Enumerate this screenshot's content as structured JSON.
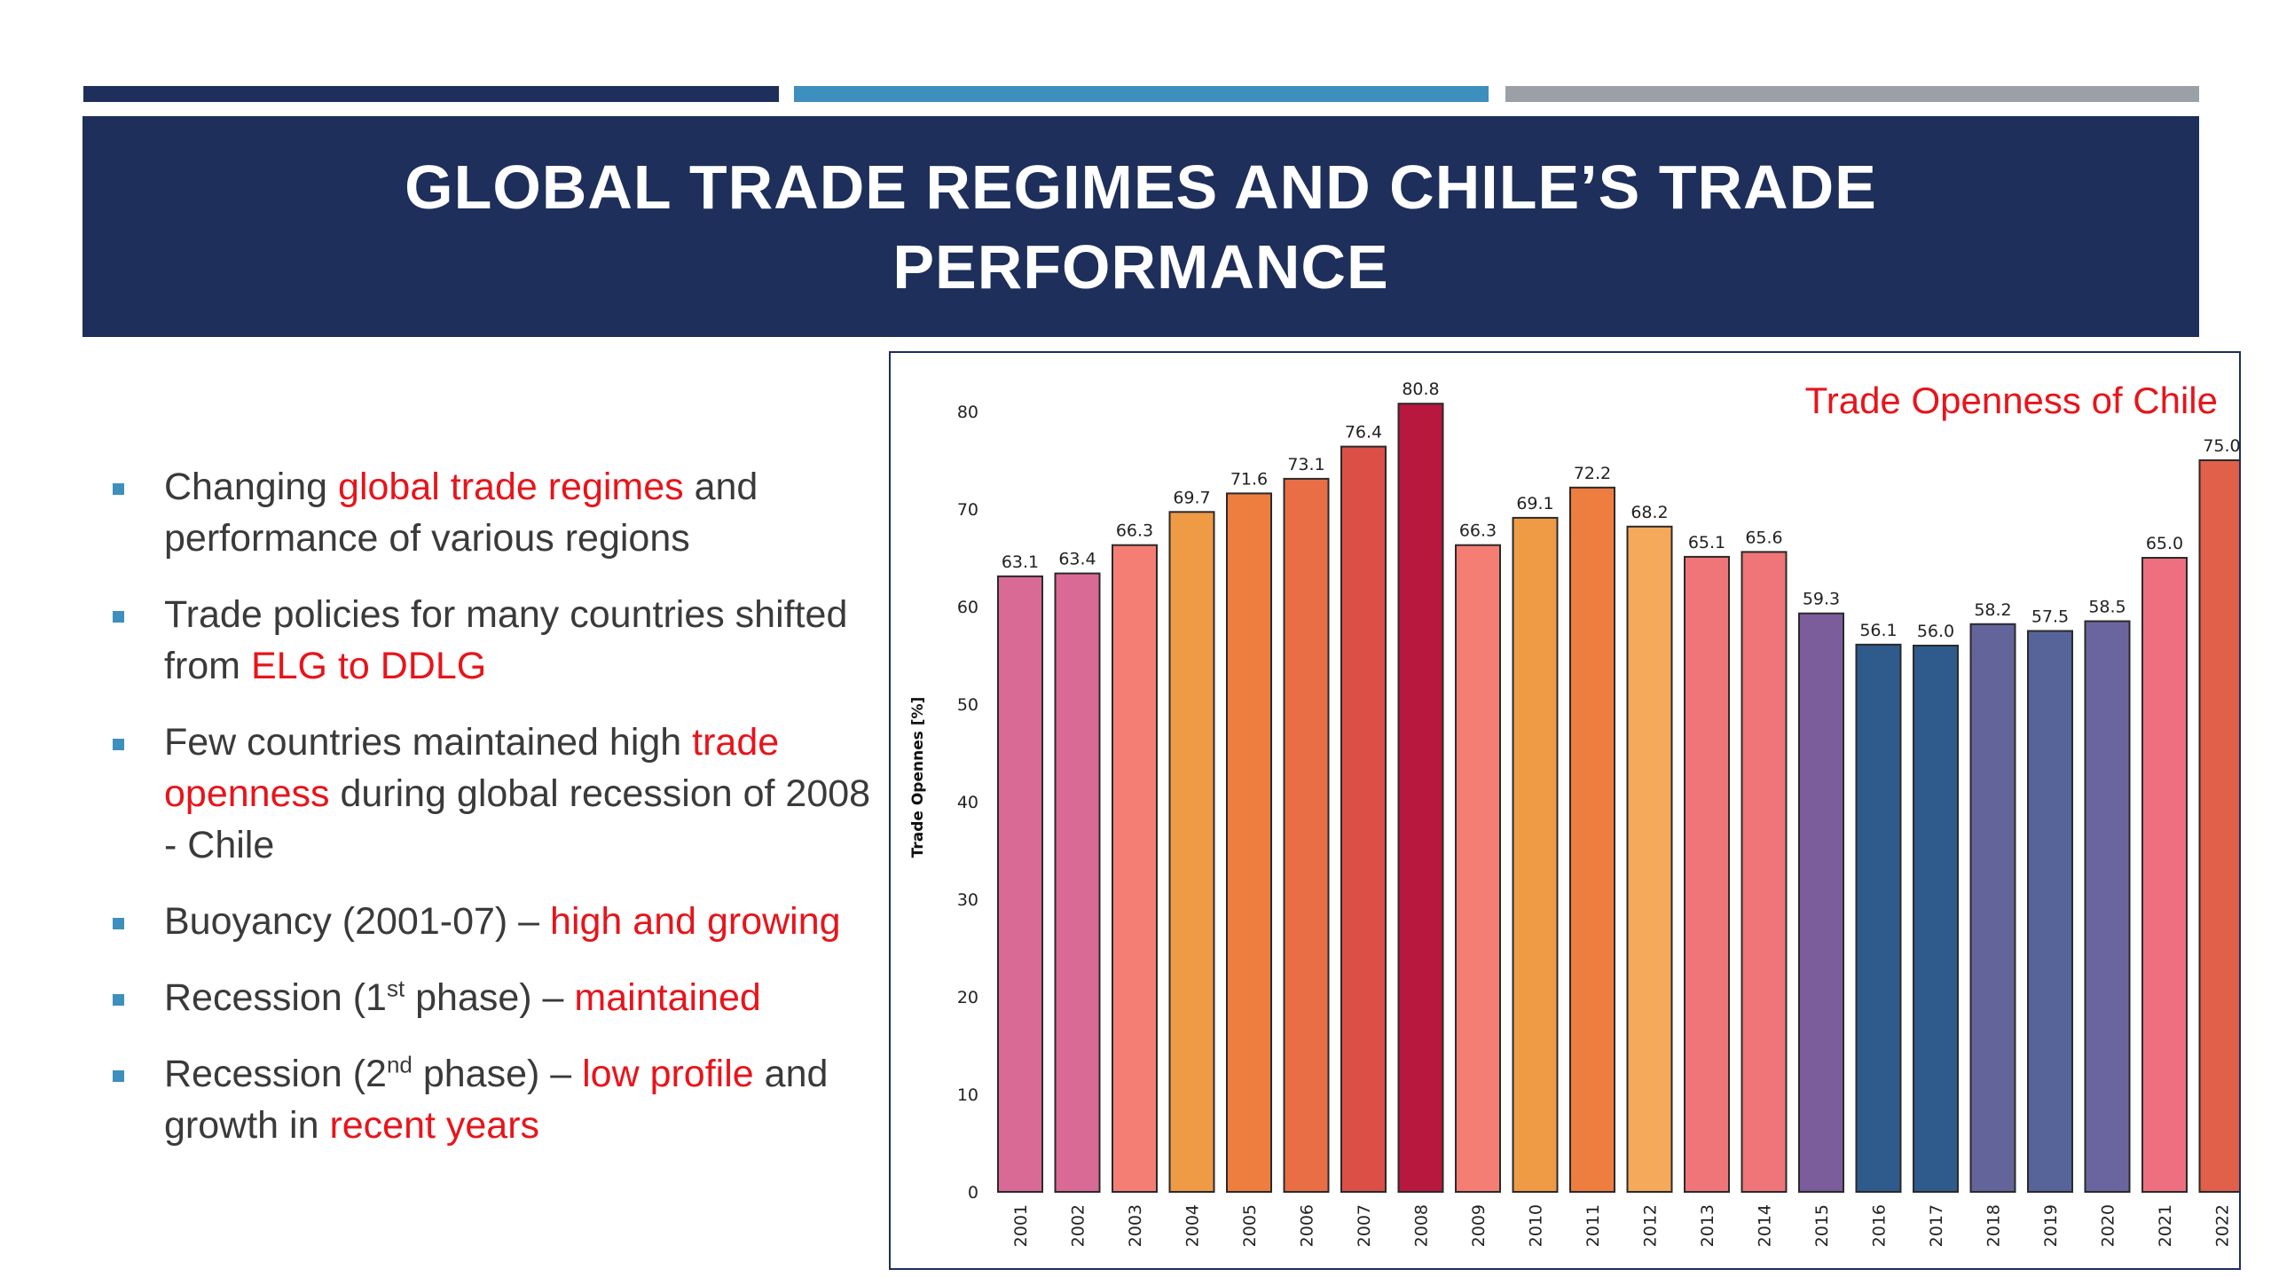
{
  "slide": {
    "title_line1": "GLOBAL TRADE REGIMES AND CHILE’S TRADE",
    "title_line2": "PERFORMANCE"
  },
  "bullets": [
    {
      "a": "Changing ",
      "b": "global trade regimes",
      "c": " and performance of various regions"
    },
    {
      "a": "Trade policies for many countries shifted from ",
      "b": "ELG to DDLG",
      "c": ""
    },
    {
      "a": "Few countries maintained high ",
      "b": "trade openness",
      "c": " during global recession of 2008 - Chile"
    },
    {
      "a": "Buoyancy (2001-07) – ",
      "b": "high and growing",
      "c": ""
    },
    {
      "a1": "Recession (1",
      "sup": "st",
      "a2": " phase) – ",
      "b": "maintained",
      "c": ""
    },
    {
      "a1": "Recession (2",
      "sup": "nd",
      "a2": " phase) – ",
      "b": "low profile",
      "c": " and growth in ",
      "d": "recent years"
    }
  ],
  "colors": {
    "navy": "#1d2f5a",
    "accent_blue": "#3d8fbd",
    "gray": "#9aa0a6",
    "highlight_red": "#e8141b"
  },
  "chart_data": {
    "type": "bar",
    "title": "Trade Openness of Chile",
    "ylabel": "Trade Opennes [%]",
    "xlabel": "",
    "ylim": [
      0,
      85
    ],
    "yticks": [
      0,
      10,
      20,
      30,
      40,
      50,
      60,
      70,
      80
    ],
    "categories": [
      "2001",
      "2002",
      "2003",
      "2004",
      "2005",
      "2006",
      "2007",
      "2008",
      "2009",
      "2010",
      "2011",
      "2012",
      "2013",
      "2014",
      "2015",
      "2016",
      "2017",
      "2018",
      "2019",
      "2020",
      "2021",
      "2022"
    ],
    "values": [
      63.1,
      63.4,
      66.3,
      69.7,
      71.6,
      73.1,
      76.4,
      80.8,
      66.3,
      69.1,
      72.2,
      68.2,
      65.1,
      65.6,
      59.3,
      56.1,
      56.0,
      58.2,
      57.5,
      58.5,
      65.0,
      75.0
    ],
    "labels": [
      "63.1",
      "63.4",
      "66.3",
      "69.7",
      "71.6",
      "73.1",
      "76.4",
      "80.8",
      "66.3",
      "69.1",
      "72.2",
      "68.2",
      "65.1",
      "65.6",
      "59.3",
      "56.1",
      "56.0",
      "58.2",
      "57.5",
      "58.5",
      "65.0",
      "75.0"
    ],
    "bar_colors": [
      "#d96a96",
      "#d96a96",
      "#f47e74",
      "#ef9b46",
      "#ee7d40",
      "#ea6e45",
      "#dc4f47",
      "#b8173e",
      "#f47e74",
      "#ef9b46",
      "#ee7d40",
      "#f5a95a",
      "#ef7579",
      "#ef7579",
      "#7b5d9c",
      "#2f5a8c",
      "#2f5a8c",
      "#62649a",
      "#57649a",
      "#6b659f",
      "#ee6f80",
      "#e0604a"
    ],
    "grid": false,
    "legend": "none"
  }
}
